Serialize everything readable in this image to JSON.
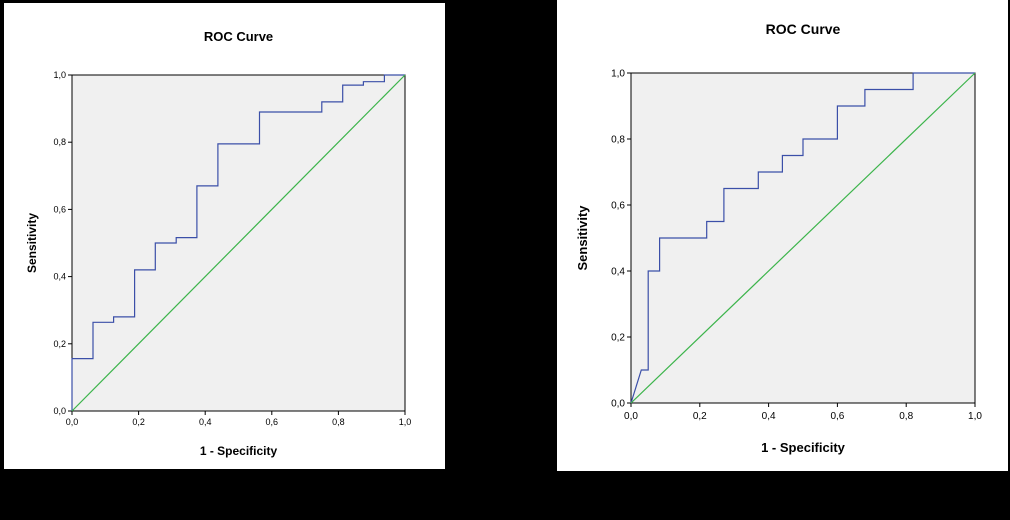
{
  "charts": [
    {
      "panel": "left",
      "chart_data": {
        "type": "line",
        "title": "ROC Curve",
        "xlabel": "1 - Specificity",
        "ylabel": "Sensitivity",
        "xlim": [
          0,
          1
        ],
        "ylim": [
          0,
          1
        ],
        "xticks": [
          "0,0",
          "0,2",
          "0,4",
          "0,6",
          "0,8",
          "1,0"
        ],
        "yticks": [
          "0,0",
          "0,2",
          "0,4",
          "0,6",
          "0,8",
          "1,0"
        ],
        "grid": false,
        "series": [
          {
            "kind": "roc",
            "color": "#3b4fa8",
            "x": [
              0,
              0,
              0.063,
              0.063,
              0.125,
              0.125,
              0.188,
              0.188,
              0.25,
              0.25,
              0.313,
              0.313,
              0.375,
              0.375,
              0.438,
              0.438,
              0.563,
              0.563,
              0.75,
              0.75,
              0.813,
              0.813,
              0.875,
              0.875,
              0.938,
              0.938,
              1
            ],
            "y": [
              0,
              0.156,
              0.156,
              0.264,
              0.264,
              0.28,
              0.28,
              0.42,
              0.42,
              0.5,
              0.5,
              0.516,
              0.516,
              0.67,
              0.67,
              0.795,
              0.795,
              0.89,
              0.89,
              0.92,
              0.92,
              0.97,
              0.97,
              0.98,
              0.98,
              1,
              1
            ]
          },
          {
            "kind": "reference",
            "color": "#3cb44b",
            "x": [
              0,
              1
            ],
            "y": [
              0,
              1
            ]
          }
        ]
      }
    },
    {
      "panel": "right",
      "chart_data": {
        "type": "line",
        "title": "ROC Curve",
        "xlabel": "1 - Specificity",
        "ylabel": "Sensitivity",
        "xlim": [
          0,
          1
        ],
        "ylim": [
          0,
          1
        ],
        "xticks": [
          "0,0",
          "0,2",
          "0,4",
          "0,6",
          "0,8",
          "1,0"
        ],
        "yticks": [
          "0,0",
          "0,2",
          "0,4",
          "0,6",
          "0,8",
          "1,0"
        ],
        "grid": false,
        "series": [
          {
            "kind": "roc",
            "color": "#3b4fa8",
            "x": [
              0,
              0.03,
              0.03,
              0.05,
              0.05,
              0.083,
              0.083,
              0.22,
              0.22,
              0.27,
              0.27,
              0.37,
              0.37,
              0.44,
              0.44,
              0.5,
              0.5,
              0.6,
              0.6,
              0.68,
              0.68,
              0.82,
              0.82,
              1
            ],
            "y": [
              0,
              0.1,
              0.1,
              0.1,
              0.4,
              0.4,
              0.5,
              0.5,
              0.55,
              0.55,
              0.65,
              0.65,
              0.7,
              0.7,
              0.75,
              0.75,
              0.8,
              0.8,
              0.9,
              0.9,
              0.95,
              0.95,
              1,
              1
            ]
          },
          {
            "kind": "reference",
            "color": "#3cb44b",
            "x": [
              0,
              1
            ],
            "y": [
              0,
              1
            ]
          }
        ]
      }
    }
  ]
}
